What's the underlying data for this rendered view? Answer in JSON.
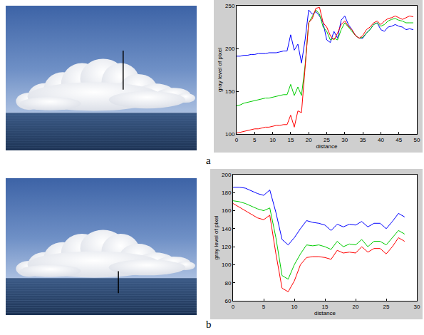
{
  "chart_data": [
    {
      "panel": "a",
      "type": "line",
      "x_label": "distance",
      "y_label": "gray level of pixel",
      "x": [
        0,
        1,
        2,
        3,
        4,
        5,
        6,
        7,
        8,
        9,
        10,
        11,
        12,
        13,
        14,
        15,
        16,
        17,
        18,
        19,
        20,
        21,
        22,
        23,
        24,
        25,
        26,
        27,
        28,
        29,
        30,
        31,
        32,
        33,
        34,
        35,
        36,
        37,
        38,
        39,
        40,
        41,
        42,
        43,
        44,
        45,
        46,
        47,
        48,
        49
      ],
      "xlim": [
        0,
        50
      ],
      "xticks": [
        0,
        5,
        10,
        15,
        20,
        25,
        30,
        35,
        40,
        45,
        50
      ],
      "ylim": [
        100,
        250
      ],
      "yticks": [
        100,
        150,
        200,
        250
      ],
      "series": [
        {
          "color": "#0000ff",
          "values": [
            191,
            191,
            192,
            192,
            193,
            193,
            194,
            194,
            194,
            195,
            195,
            195,
            196,
            197,
            197,
            216,
            198,
            205,
            183,
            210,
            245,
            240,
            243,
            238,
            230,
            210,
            207,
            220,
            212,
            233,
            238,
            228,
            222,
            215,
            212,
            212,
            218,
            222,
            228,
            230,
            222,
            220,
            225,
            226,
            228,
            226,
            225,
            222,
            223,
            222
          ]
        },
        {
          "color": "#00cc00",
          "values": [
            133,
            134,
            136,
            137,
            138,
            139,
            140,
            141,
            142,
            142,
            143,
            144,
            145,
            146,
            146,
            158,
            145,
            155,
            145,
            180,
            230,
            238,
            245,
            240,
            225,
            220,
            210,
            212,
            210,
            222,
            230,
            225,
            220,
            215,
            212,
            213,
            218,
            222,
            228,
            230,
            226,
            228,
            232,
            234,
            235,
            233,
            232,
            230,
            230,
            230
          ]
        },
        {
          "color": "#ff0000",
          "values": [
            101,
            102,
            103,
            104,
            105,
            106,
            106,
            107,
            108,
            108,
            109,
            110,
            110,
            111,
            111,
            122,
            108,
            127,
            125,
            180,
            230,
            235,
            247,
            248,
            230,
            225,
            215,
            210,
            218,
            228,
            232,
            226,
            222,
            215,
            212,
            215,
            222,
            225,
            230,
            232,
            228,
            232,
            235,
            236,
            238,
            236,
            234,
            236,
            238,
            237
          ]
        }
      ]
    },
    {
      "panel": "b",
      "type": "line",
      "x_label": "distance",
      "y_label": "gray level of pixel",
      "x": [
        0,
        1,
        2,
        3,
        4,
        5,
        6,
        7,
        8,
        9,
        10,
        11,
        12,
        13,
        14,
        15,
        16,
        17,
        18,
        19,
        20,
        21,
        22,
        23,
        24,
        25,
        26,
        27,
        28
      ],
      "xlim": [
        0,
        30
      ],
      "xticks": [
        0,
        5,
        10,
        15,
        20,
        25,
        30
      ],
      "ylim": [
        60,
        200
      ],
      "yticks": [
        60,
        80,
        100,
        120,
        140,
        160,
        180,
        200
      ],
      "series": [
        {
          "color": "#0000ff",
          "values": [
            186,
            186,
            185,
            182,
            179,
            177,
            183,
            158,
            128,
            122,
            130,
            140,
            149,
            147,
            146,
            144,
            138,
            145,
            142,
            145,
            144,
            148,
            142,
            146,
            146,
            140,
            148,
            157,
            153
          ]
        },
        {
          "color": "#00cc00",
          "values": [
            171,
            170,
            168,
            165,
            162,
            160,
            163,
            130,
            88,
            84,
            100,
            112,
            122,
            121,
            122,
            120,
            117,
            126,
            120,
            123,
            122,
            128,
            120,
            126,
            126,
            122,
            130,
            138,
            134
          ]
        },
        {
          "color": "#ff0000",
          "values": [
            168,
            164,
            160,
            156,
            152,
            150,
            155,
            112,
            74,
            70,
            82,
            100,
            108,
            109,
            109,
            108,
            106,
            116,
            113,
            114,
            113,
            120,
            114,
            118,
            118,
            112,
            120,
            130,
            126
          ]
        }
      ]
    }
  ]
}
